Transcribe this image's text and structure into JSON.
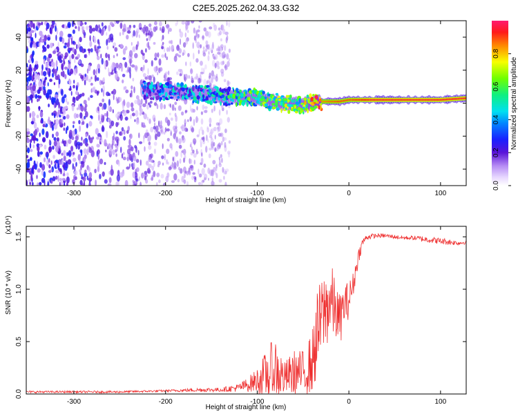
{
  "title": "C2E5.2025.262.04.33.G32",
  "colors": {
    "snr_line": "#ee2c2c",
    "ridge": [
      "#3d00c8",
      "#0050ff",
      "#00d8ff",
      "#22ff44",
      "#ffe000",
      "#ff3030"
    ]
  },
  "chart_data": [
    {
      "type": "heatmap",
      "name": "spectrogram",
      "xlabel": "Height of straight line (km)",
      "ylabel": "Frequency (Hz)",
      "xlim": [
        -352,
        128
      ],
      "ylim": [
        -50,
        50
      ],
      "xticks": [
        -300,
        -200,
        -100,
        0,
        100
      ],
      "xtick_labels": [
        "-300",
        "-200",
        "-100",
        "0",
        "100"
      ],
      "yticks": [
        -40,
        -20,
        0,
        20,
        40
      ],
      "ytick_labels": [
        "-40",
        "-20",
        "0",
        "20",
        "40"
      ],
      "colorbar": {
        "label": "Normalized spectral amplitude",
        "range": [
          0,
          1
        ],
        "ticks": [
          0.0,
          0.2,
          0.4,
          0.6,
          0.8
        ],
        "tick_labels": [
          "0.0",
          "0.2",
          "0.4",
          "0.6",
          "0.8"
        ]
      },
      "ridge": {
        "x": [
          -225,
          -200,
          -175,
          -150,
          -125,
          -100,
          -75,
          -50,
          -30,
          -20,
          -10,
          0,
          25,
          50,
          75,
          100,
          128
        ],
        "frequency": [
          8,
          7,
          6,
          5,
          4,
          3,
          0,
          -1,
          1,
          1,
          1,
          2,
          2,
          2,
          2,
          2,
          3
        ],
        "amplitude": [
          0.22,
          0.28,
          0.3,
          0.36,
          0.42,
          0.48,
          0.55,
          0.55,
          0.85,
          0.88,
          0.9,
          0.9,
          0.95,
          0.95,
          0.95,
          0.95,
          0.95
        ]
      },
      "noise_region": [
        -352,
        -130
      ]
    },
    {
      "type": "line",
      "name": "snr",
      "xlabel": "Height of straight line (km)",
      "ylabel": "SNR (10 * v/v)",
      "scale_label": "(x10⁴)",
      "xlim": [
        -352,
        128
      ],
      "ylim": [
        0,
        1.6
      ],
      "xticks": [
        -300,
        -200,
        -100,
        0,
        100
      ],
      "xtick_labels": [
        "-300",
        "-200",
        "-100",
        "0",
        "100"
      ],
      "yticks": [
        0.0,
        0.5,
        1.0,
        1.5
      ],
      "ytick_labels": [
        "0.0",
        "0.5",
        "1.0",
        "1.5"
      ],
      "x": [
        -352,
        -300,
        -250,
        -200,
        -160,
        -140,
        -120,
        -110,
        -100,
        -90,
        -80,
        -70,
        -60,
        -50,
        -40,
        -35,
        -30,
        -25,
        -20,
        -15,
        -10,
        -5,
        0,
        5,
        10,
        15,
        20,
        30,
        40,
        50,
        60,
        70,
        80,
        90,
        100,
        110,
        120,
        128
      ],
      "mean": [
        0.02,
        0.02,
        0.02,
        0.03,
        0.04,
        0.04,
        0.06,
        0.09,
        0.13,
        0.18,
        0.22,
        0.15,
        0.2,
        0.2,
        0.3,
        0.55,
        0.72,
        0.82,
        0.9,
        0.8,
        0.7,
        0.85,
        0.9,
        1.05,
        1.3,
        1.45,
        1.5,
        1.51,
        1.51,
        1.5,
        1.49,
        1.49,
        1.48,
        1.47,
        1.46,
        1.45,
        1.44,
        1.45
      ],
      "spread": [
        0.01,
        0.01,
        0.01,
        0.01,
        0.02,
        0.02,
        0.04,
        0.07,
        0.12,
        0.24,
        0.34,
        0.16,
        0.22,
        0.22,
        0.3,
        0.42,
        0.4,
        0.4,
        0.38,
        0.3,
        0.25,
        0.2,
        0.18,
        0.12,
        0.08,
        0.04,
        0.03,
        0.02,
        0.02,
        0.02,
        0.02,
        0.02,
        0.03,
        0.03,
        0.03,
        0.03,
        0.02,
        0.02
      ]
    }
  ]
}
